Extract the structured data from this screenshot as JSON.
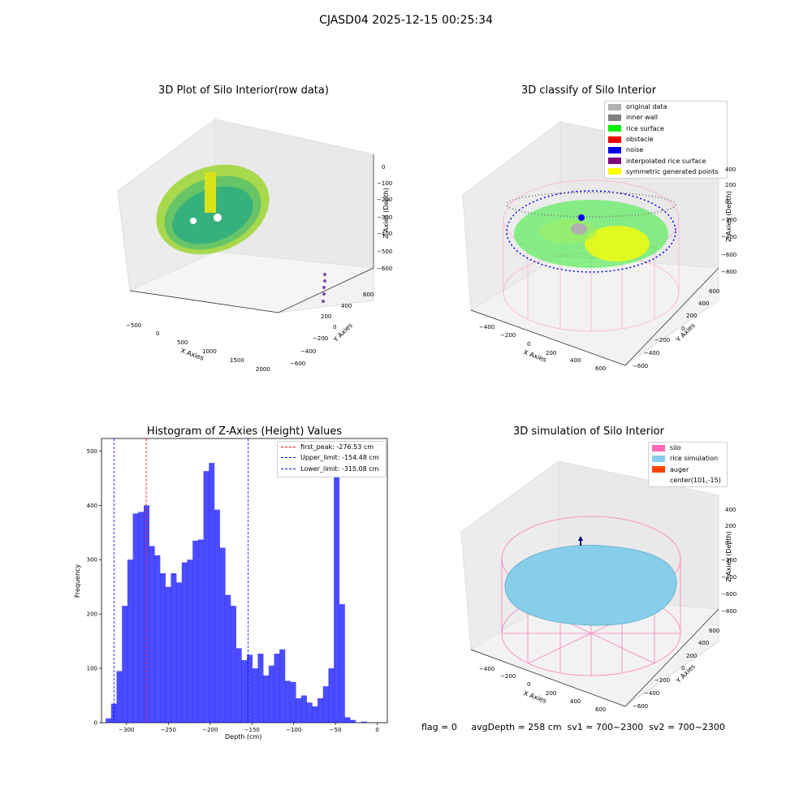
{
  "suptitle": "CJASD04 2025-12-15 00:25:34",
  "panels": {
    "raw": {
      "title": "3D Plot of Silo Interior(row data)",
      "xlabel": "X Axies",
      "ylabel": "Y Axies",
      "zlabel": "Z Axies (Depth)",
      "xticks": [
        "−500",
        "0",
        "500",
        "1000",
        "1500",
        "2000"
      ],
      "yticks": [
        "600",
        "400",
        "200",
        "0",
        "−200",
        "−400",
        "−600"
      ],
      "zticks": [
        "0",
        "−100",
        "−200",
        "−300",
        "−400",
        "−500",
        "−600"
      ]
    },
    "classify": {
      "title": "3D classify of Silo Interior",
      "xlabel": "X Axies",
      "ylabel": "Y Axies",
      "zlabel": "Z Axies (Depth)",
      "xticks": [
        "−400",
        "−200",
        "0",
        "200",
        "400",
        "600"
      ],
      "yticks": [
        "600",
        "400",
        "200",
        "0",
        "−200",
        "−400",
        "−600"
      ],
      "zticks": [
        "400",
        "200",
        "0",
        "−200",
        "−400",
        "−600",
        "−800"
      ],
      "legend": [
        {
          "label": "original data",
          "color": "#b0b0b0"
        },
        {
          "label": "inner wall",
          "color": "#808080"
        },
        {
          "label": "rice surface",
          "color": "#00ee00"
        },
        {
          "label": "obstacle",
          "color": "#ee0000"
        },
        {
          "label": "noise",
          "color": "#0000ee"
        },
        {
          "label": "interpolated rice surface",
          "color": "#800080"
        },
        {
          "label": "symmetric generated points",
          "color": "#ffff00"
        }
      ]
    },
    "simulation": {
      "title": "3D simulation of Silo Interior",
      "xlabel": "X Axies",
      "ylabel": "Y Axies",
      "zlabel": "Z Axies (Depth)",
      "xticks": [
        "−400",
        "−200",
        "0",
        "200",
        "400",
        "600"
      ],
      "yticks": [
        "600",
        "400",
        "200",
        "0",
        "−200",
        "−400",
        "−600"
      ],
      "zticks": [
        "400",
        "200",
        "0",
        "−200",
        "−400",
        "−600",
        "−800"
      ],
      "legend": [
        {
          "label": "silo",
          "color": "#ff69b4"
        },
        {
          "label": "rice simulation",
          "color": "#87ceeb"
        },
        {
          "label": "auger",
          "color": "#ff4500"
        },
        {
          "label": "center(101,-15)",
          "color": ""
        }
      ]
    }
  },
  "status": {
    "flag": "flag = 0",
    "avg": "avgDepth = 258 cm  sv1 = 700~2300  sv2 = 700~2300"
  },
  "chart_data": {
    "type": "bar",
    "title": "Histogram of Z-Axies (Height) Values",
    "xlabel": "Depth (cm)",
    "ylabel": "Frequency",
    "xlim": [
      -330,
      12
    ],
    "ylim": [
      0,
      523
    ],
    "xticks": [
      -300,
      -250,
      -200,
      -150,
      -100,
      -50,
      0
    ],
    "yticks": [
      0,
      100,
      200,
      300,
      400,
      500
    ],
    "bin_start": -325,
    "bin_width": 6.5,
    "color": "#0000ff",
    "values": [
      8,
      35,
      95,
      215,
      300,
      385,
      388,
      400,
      325,
      308,
      275,
      250,
      275,
      258,
      295,
      300,
      335,
      337,
      463,
      478,
      392,
      322,
      235,
      215,
      137,
      115,
      125,
      100,
      127,
      87,
      105,
      127,
      135,
      77,
      75,
      45,
      50,
      37,
      30,
      45,
      67,
      100,
      497,
      218,
      10,
      5,
      0,
      2
    ],
    "vlines": [
      {
        "label": "first_peak: -276.53 cm",
        "x": -276.53,
        "color": "#ff0000"
      },
      {
        "label": "Upper_limit: -154.48 cm",
        "x": -154.48,
        "color": "#0000ff"
      },
      {
        "label": "Lower_limit: -315.08 cm",
        "x": -315.08,
        "color": "#0000ff"
      }
    ]
  }
}
